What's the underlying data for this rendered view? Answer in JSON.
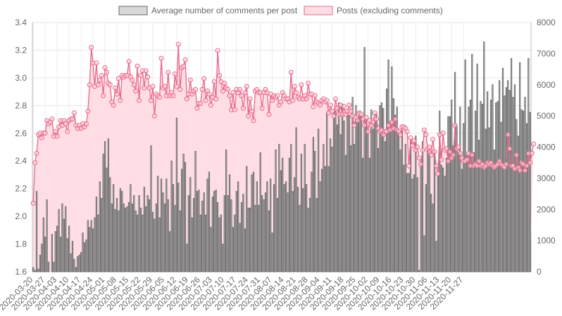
{
  "chart_data": {
    "type": "bar",
    "legend_position": "top-center",
    "grid": true,
    "series": [
      {
        "name": "Average number of comments per post",
        "render": "bar",
        "axis": "y_left",
        "fill": "#d9d9d9",
        "stroke": "#666666",
        "values": [
          1.63,
          1.61,
          2.18,
          1.62,
          1.72,
          1.8,
          1.99,
          1.85,
          2.12,
          1.67,
          1.58,
          1.87,
          1.67,
          1.89,
          1.93,
          2.05,
          1.85,
          2.09,
          1.98,
          2.07,
          1.84,
          1.93,
          1.73,
          1.82,
          1.69,
          1.63,
          1.71,
          1.72,
          1.74,
          1.88,
          1.81,
          1.83,
          1.97,
          1.92,
          1.97,
          1.91,
          1.99,
          2.14,
          2.01,
          2.25,
          2.13,
          2.45,
          2.54,
          2.35,
          2.56,
          2.28,
          2.09,
          2.23,
          2.05,
          2.13,
          2.04,
          2.2,
          2.18,
          2.09,
          2.06,
          2.07,
          2.1,
          2.23,
          2.09,
          2.15,
          2.04,
          2.01,
          2.15,
          2.06,
          2.01,
          2.21,
          2.07,
          2.15,
          2.12,
          2.51,
          2.03,
          1.98,
          2.09,
          2.29,
          1.99,
          2.27,
          2.17,
          2.09,
          2.27,
          2.12,
          1.89,
          2.4,
          2.23,
          2.08,
          2.71,
          2.24,
          2.04,
          2.34,
          2.45,
          2.39,
          1.8,
          2.15,
          2.28,
          1.99,
          2.13,
          2.47,
          2.18,
          2.19,
          2.01,
          2.11,
          2.17,
          2.01,
          2.27,
          2.32,
          1.92,
          2.14,
          2.18,
          2.19,
          2.1,
          1.99,
          2.01,
          1.8,
          2.15,
          2.48,
          2.15,
          2.3,
          2.12,
          1.92,
          2.01,
          2.18,
          2.25,
          1.95,
          2.1,
          2.16,
          1.91,
          2.36,
          2.06,
          2.06,
          2.3,
          2.32,
          2.08,
          2.25,
          2.08,
          2.46,
          2.15,
          2.12,
          2.17,
          2.25,
          2.04,
          2.27,
          1.88,
          2.23,
          2.48,
          2.13,
          2.52,
          2.33,
          2.42,
          2.23,
          2.25,
          2.17,
          2.42,
          2.52,
          2.18,
          2.28,
          2.64,
          2.21,
          2.08,
          2.45,
          2.2,
          2.52,
          2.23,
          2.06,
          2.13,
          2.32,
          2.57,
          2.47,
          2.13,
          2.63,
          2.25,
          2.34,
          2.52,
          2.36,
          2.75,
          2.36,
          2.56,
          2.5,
          2.71,
          2.76,
          2.66,
          2.82,
          2.59,
          2.81,
          2.69,
          2.44,
          2.76,
          2.73,
          2.51,
          2.86,
          2.52,
          2.8,
          2.69,
          2.76,
          2.72,
          2.42,
          3.22,
          2.68,
          2.63,
          2.42,
          2.77,
          2.63,
          2.68,
          2.74,
          2.49,
          2.8,
          2.82,
          2.78,
          2.54,
          2.92,
          3.13,
          2.68,
          3.08,
          2.85,
          2.73,
          2.79,
          2.63,
          2.48,
          2.62,
          2.37,
          2.52,
          2.31,
          2.31,
          2.54,
          2.27,
          2.3,
          2.58,
          2.28,
          1.61,
          2.38,
          2.54,
          1.86,
          2.23,
          2.49,
          2.45,
          2.16,
          2.09,
          2.47,
          1.82,
          2.29,
          2.76,
          2.37,
          2.35,
          2.29,
          2.42,
          2.72,
          2.72,
          2.84,
          2.51,
          3.04,
          2.66,
          2.46,
          2.79,
          2.34,
          2.67,
          3.13,
          2.44,
          2.79,
          2.84,
          3.17,
          2.46,
          2.76,
          3.1,
          2.55,
          2.83,
          2.81,
          3.26,
          2.63,
          2.9,
          2.64,
          2.84,
          2.95,
          2.48,
          2.82,
          2.83,
          2.98,
          2.68,
          3.07,
          2.87,
          2.93,
          2.98,
          2.91,
          3.14,
          2.86,
          2.95,
          2.7,
          2.58,
          3.11,
          2.77,
          2.76,
          2.86,
          2.67,
          3.14,
          2.75
        ]
      },
      {
        "name": "Posts (excluding comments)",
        "render": "line-area",
        "axis": "y_right",
        "fill": "#ffdde4",
        "stroke": "#e8678a",
        "values": [
          2200,
          3500,
          3800,
          4400,
          4450,
          4300,
          4450,
          4450,
          4850,
          4750,
          4800,
          4900,
          4350,
          4500,
          4350,
          4650,
          4850,
          4700,
          4850,
          4750,
          4500,
          4850,
          4900,
          4900,
          5100,
          4700,
          4600,
          4700,
          4600,
          4750,
          4650,
          4750,
          5150,
          6000,
          7200,
          6700,
          5950,
          6700,
          6000,
          6150,
          6300,
          5650,
          6550,
          6400,
          6050,
          6000,
          5450,
          5350,
          5900,
          5700,
          6200,
          5500,
          6300,
          6250,
          6300,
          6300,
          6750,
          6250,
          6150,
          6000,
          5800,
          6600,
          5500,
          6300,
          6450,
          5900,
          6450,
          6250,
          5900,
          5500,
          5950,
          5000,
          5700,
          5650,
          5600,
          6850,
          5900,
          5950,
          5650,
          6400,
          5650,
          5750,
          5650,
          6350,
          5950,
          7300,
          5850,
          6550,
          6600,
          6800,
          5550,
          5700,
          6150,
          5700,
          5800,
          5850,
          5250,
          5400,
          5400,
          5850,
          6200,
          5500,
          5800,
          5700,
          5350,
          5600,
          6100,
          5550,
          7100,
          6300,
          6100,
          5800,
          6050,
          5900,
          5850,
          5650,
          5200,
          5750,
          5200,
          5850,
          5750,
          5850,
          5650,
          5250,
          5750,
          5950,
          5000,
          5550,
          5150,
          4850,
          5800,
          5850,
          5750,
          5750,
          5250,
          5750,
          5850,
          5750,
          5050,
          5700,
          5500,
          5650,
          5600,
          5650,
          5350,
          5450,
          5750,
          5650,
          5550,
          5550,
          5450,
          6400,
          5500,
          5950,
          5750,
          5600,
          5550,
          6000,
          5550,
          5650,
          5550,
          6050,
          5700,
          5700,
          5300,
          5650,
          5450,
          5400,
          5350,
          5500,
          5550,
          5450,
          5500,
          5100,
          5350,
          5150,
          5000,
          5550,
          5250,
          5050,
          5350,
          5050,
          5300,
          5050,
          5150,
          5350,
          5150,
          5000,
          4700,
          4950,
          4850,
          5100,
          5050,
          4900,
          4700,
          4950,
          4500,
          4850,
          4700,
          4800,
          5100,
          4900,
          4600,
          4500,
          4550,
          4400,
          4500,
          4500,
          4700,
          4550,
          4800,
          4600,
          4900,
          4550,
          4500,
          4400,
          4650,
          4650,
          4600,
          4500,
          3400,
          4300,
          4050,
          4200,
          3900,
          4000,
          3650,
          3450,
          3900,
          4550,
          4400,
          3950,
          4000,
          3750,
          4250,
          3850,
          3400,
          3150,
          4400,
          3600,
          4450,
          3900,
          3950,
          3550,
          3850,
          3650,
          3750,
          4700,
          3950,
          4000,
          3800,
          3650,
          3550,
          3550,
          3600,
          3800,
          3400,
          3750,
          3400,
          3450,
          3400,
          3550,
          3400,
          3450,
          3350,
          3400,
          3500,
          3450,
          3500,
          3400,
          3350,
          3400,
          3450,
          3550,
          3450,
          3400,
          3350,
          3450,
          4400,
          3950,
          3400,
          3400,
          3300,
          3750,
          3350,
          3250,
          3500,
          3450,
          3250,
          3400,
          3800,
          3500,
          3800,
          4100
        ]
      }
    ],
    "y_left": {
      "ylim": [
        1.6,
        3.4
      ],
      "ticks": [
        "1.6",
        "1.8",
        "2.0",
        "2.2",
        "2.4",
        "2.6",
        "2.8",
        "3.0",
        "3.2",
        "3.4"
      ]
    },
    "y_right": {
      "ylim": [
        0,
        8000
      ],
      "ticks": [
        "0",
        "1000",
        "2000",
        "3000",
        "4000",
        "5000",
        "6000",
        "7000",
        "8000"
      ]
    },
    "x": {
      "start_date": "2020-03-20",
      "tick_labels": [
        "2020-03-20",
        "2020-03-27",
        "2020-04-03",
        "2020-04-10",
        "2020-04-17",
        "2020-04-24",
        "2020-05-01",
        "2020-05-08",
        "2020-05-15",
        "2020-05-22",
        "2020-05-29",
        "2020-06-05",
        "2020-06-12",
        "2020-06-19",
        "2020-06-26",
        "2020-07-03",
        "2020-07-10",
        "2020-07-17",
        "2020-07-24",
        "2020-07-31",
        "2020-08-07",
        "2020-08-14",
        "2020-08-21",
        "2020-08-28",
        "2020-09-04",
        "2020-09-11",
        "2020-09-18",
        "2020-09-25",
        "2020-10-02",
        "2020-10-09",
        "2020-10-16",
        "2020-10-23",
        "2020-10-30",
        "2020-11-06",
        "2020-11-13",
        "2020-11-20",
        "2020-11-27"
      ]
    }
  }
}
